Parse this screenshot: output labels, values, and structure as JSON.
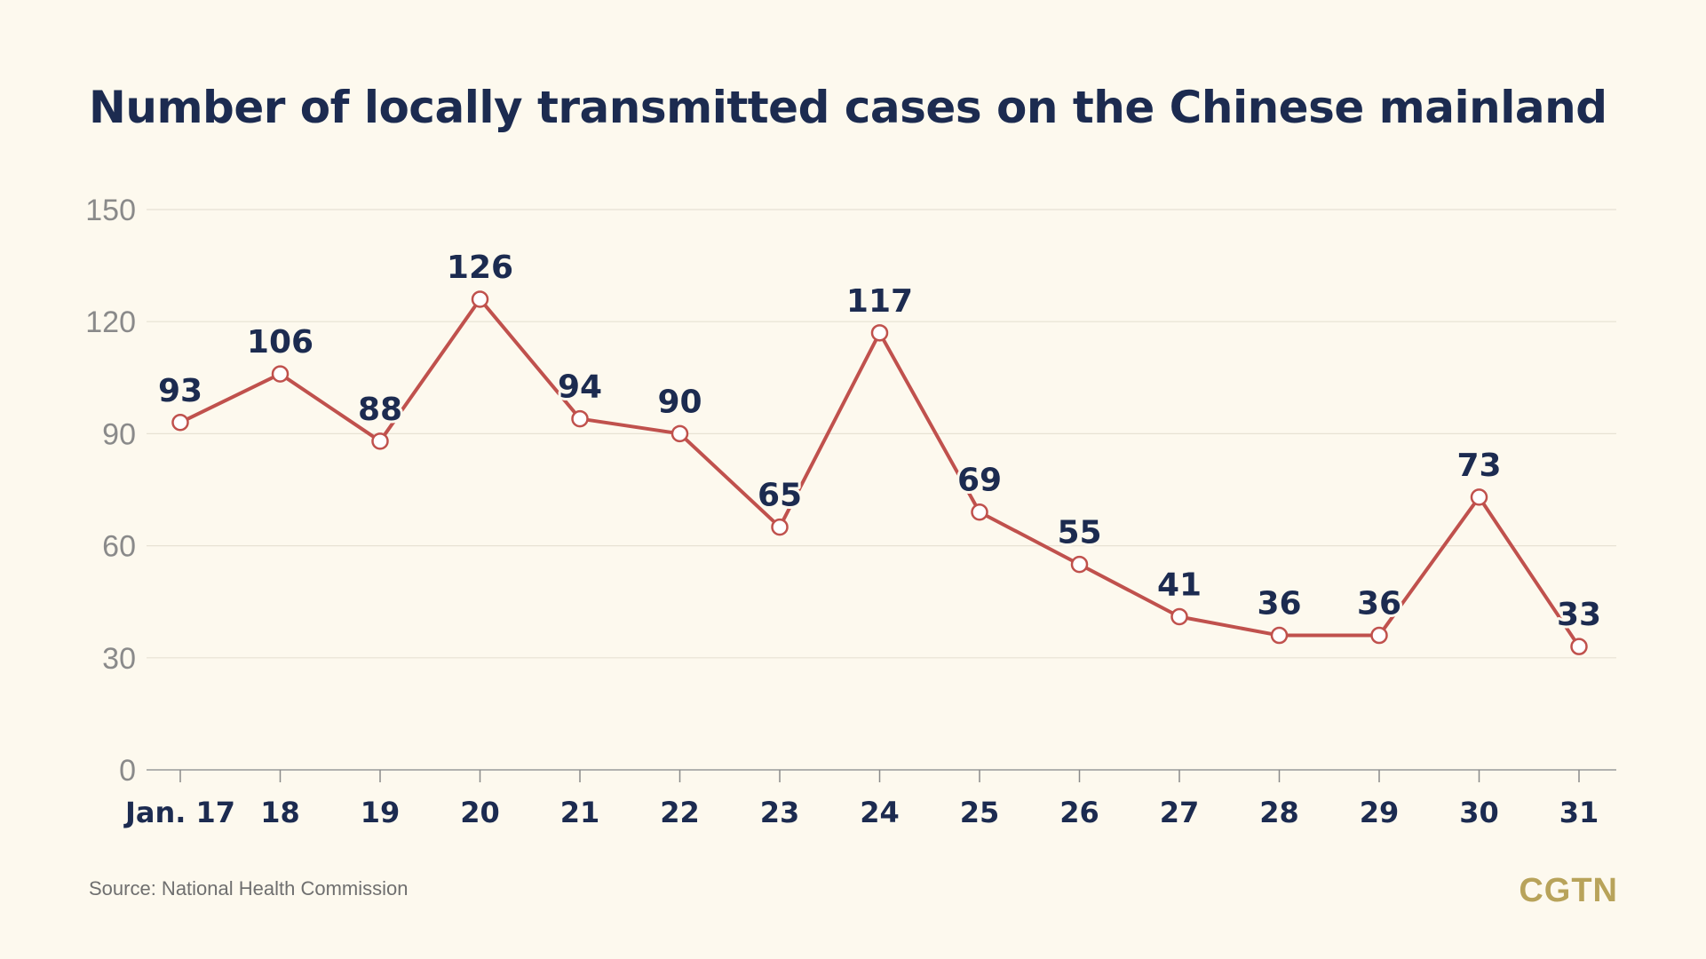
{
  "source_note": "Source: National Health Commission",
  "brand": "CGTN",
  "colors": {
    "background": "#fdf9ee",
    "line": "#c0514d",
    "title": "#1c2b50",
    "axis_text": "#8a8a8a",
    "grid": "#e7e2d4",
    "brand": "#b8a35a"
  },
  "chart_data": {
    "type": "line",
    "title": "Number of locally transmitted cases on the Chinese mainland",
    "xlabel": "",
    "ylabel": "",
    "categories": [
      "Jan. 17",
      "18",
      "19",
      "20",
      "21",
      "22",
      "23",
      "24",
      "25",
      "26",
      "27",
      "28",
      "29",
      "30",
      "31"
    ],
    "series": [
      {
        "values": [
          93,
          106,
          88,
          126,
          94,
          90,
          65,
          117,
          69,
          55,
          41,
          36,
          36,
          73,
          33
        ]
      }
    ],
    "yticks": [
      "0",
      "30",
      "60",
      "90",
      "120",
      "150"
    ],
    "ylim": [
      0,
      150
    ],
    "grid": true,
    "legend": "none",
    "data_labels": true
  }
}
